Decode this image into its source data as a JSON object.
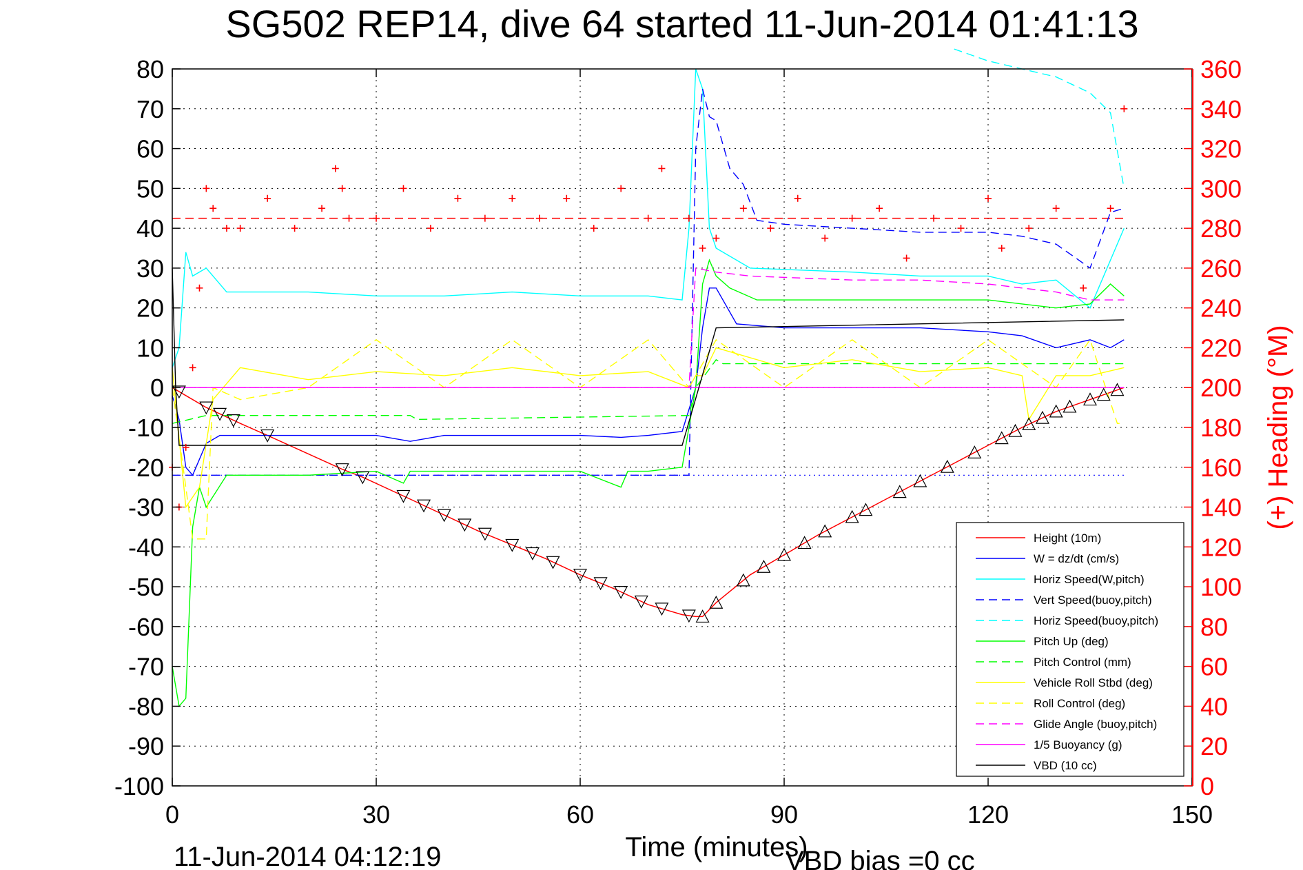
{
  "chart_data": {
    "type": "line",
    "title": "SG502 REP14, dive 64 started 11-Jun-2014 01:41:13",
    "xlabel": "Time (minutes)",
    "ylabel": "",
    "y2label": "(+) Heading (°M)",
    "footer_left": "11-Jun-2014 04:12:19",
    "footer_right": "VBD bias =0 cc",
    "xlim": [
      0,
      150
    ],
    "ylim": [
      -100,
      80
    ],
    "y2lim": [
      0,
      360
    ],
    "xticks": [
      "0",
      "30",
      "60",
      "90",
      "120",
      "150"
    ],
    "yticks": [
      "80",
      "70",
      "60",
      "50",
      "40",
      "30",
      "20",
      "10",
      "0",
      "-10",
      "-20",
      "-30",
      "-40",
      "-50",
      "-60",
      "-70",
      "-80",
      "-90",
      "-100"
    ],
    "y2ticks": [
      "360",
      "340",
      "320",
      "300",
      "280",
      "260",
      "240",
      "220",
      "200",
      "180",
      "160",
      "140",
      "120",
      "100",
      "80",
      "60",
      "40",
      "20",
      "0"
    ],
    "grid": true,
    "legend_position": "bottom-right",
    "series": [
      {
        "name": "Height (10m)",
        "color": "#ff0000",
        "style": "solid",
        "x": [
          0,
          2,
          5,
          10,
          14,
          25,
          28,
          35,
          40,
          45,
          50,
          55,
          60,
          65,
          70,
          75,
          77,
          78,
          80,
          85,
          90,
          95,
          100,
          105,
          110,
          115,
          120,
          125,
          130,
          135,
          140
        ],
        "y": [
          0,
          -2,
          -5,
          -9,
          -12,
          -20.5,
          -22.5,
          -28,
          -32,
          -36,
          -39.5,
          -43,
          -47,
          -50.5,
          -54.5,
          -57,
          -57.5,
          -57.5,
          -54,
          -47,
          -42,
          -37,
          -32.5,
          -28,
          -23.5,
          -19,
          -14.5,
          -10,
          -6,
          -3,
          0
        ]
      },
      {
        "name": "W = dz/dt (cm/s)",
        "color": "#0000ff",
        "style": "solid",
        "x": [
          0,
          1,
          2,
          3,
          5,
          7,
          10,
          20,
          30,
          35,
          40,
          50,
          60,
          66,
          70,
          75,
          77,
          78,
          79,
          80,
          83,
          90,
          100,
          110,
          120,
          125,
          130,
          135,
          138,
          140
        ],
        "y": [
          -2,
          -8,
          -20,
          -22,
          -14,
          -12,
          -12,
          -12,
          -12,
          -13.5,
          -12,
          -12,
          -12,
          -12.5,
          -12,
          -11,
          0,
          15,
          25,
          25,
          16,
          15,
          15,
          15,
          14,
          13,
          10,
          12,
          10,
          12
        ]
      },
      {
        "name": "Horiz Speed(W,pitch)",
        "color": "#00ffff",
        "style": "solid",
        "x": [
          0,
          1,
          2,
          3,
          5,
          8,
          20,
          30,
          40,
          50,
          60,
          70,
          75,
          76,
          77,
          78,
          79,
          80,
          85,
          100,
          110,
          120,
          125,
          130,
          135,
          140
        ],
        "y": [
          5,
          10,
          34,
          28,
          30,
          24,
          24,
          23,
          23,
          24,
          23,
          23,
          22,
          40,
          80,
          75,
          40,
          35,
          30,
          29,
          28,
          28,
          26,
          27,
          20,
          40
        ]
      },
      {
        "name": "Vert Speed(buoy,pitch)",
        "color": "#0000ff",
        "style": "dashed",
        "x": [
          0,
          76,
          77,
          78,
          79,
          80,
          82,
          84,
          86,
          90,
          100,
          110,
          120,
          125,
          130,
          135,
          138,
          140
        ],
        "y": [
          -22,
          -22,
          60,
          75,
          68,
          67,
          55,
          51,
          42,
          41,
          40,
          39,
          39,
          38,
          36,
          30,
          44,
          45
        ]
      },
      {
        "name": "Horiz Speed(buoy,pitch)",
        "color": "#00ffff",
        "style": "dashed",
        "x": [
          115,
          120,
          125,
          130,
          135,
          138,
          140
        ],
        "y": [
          85,
          82,
          80,
          78,
          74,
          69,
          50
        ]
      },
      {
        "name": "Pitch Up (deg)",
        "color": "#00ff00",
        "style": "solid",
        "x": [
          0,
          1,
          2,
          3,
          4,
          5,
          8,
          20,
          30,
          34,
          35,
          40,
          60,
          66,
          67,
          70,
          75,
          77,
          78,
          79,
          80,
          82,
          86,
          100,
          120,
          125,
          130,
          135,
          138,
          140
        ],
        "y": [
          -70,
          -80,
          -78,
          -35,
          -25,
          -30,
          -22,
          -22,
          -21,
          -24,
          -21,
          -21,
          -21,
          -25,
          -21,
          -21,
          -20,
          0,
          26,
          32,
          28,
          25,
          22,
          22,
          22,
          21,
          20,
          21,
          26,
          23
        ]
      },
      {
        "name": "Pitch Control (mm)",
        "color": "#00ff00",
        "style": "dashed",
        "x": [
          0,
          5,
          35,
          36,
          76,
          77,
          80,
          81,
          140
        ],
        "y": [
          -9,
          -7,
          -7,
          -8,
          -7,
          0,
          7,
          6,
          6
        ]
      },
      {
        "name": "Vehicle Roll Stbd (deg)",
        "color": "#ffff00",
        "style": "solid",
        "x": [
          0,
          2,
          4,
          6,
          10,
          20,
          30,
          40,
          50,
          60,
          70,
          76,
          77,
          78,
          80,
          90,
          100,
          110,
          120,
          125,
          126,
          130,
          135,
          140
        ],
        "y": [
          5,
          -30,
          -25,
          -3,
          5,
          2,
          4,
          3,
          5,
          3,
          4,
          0,
          3,
          3,
          10,
          5,
          7,
          4,
          5,
          3,
          -8,
          3,
          3,
          5
        ]
      },
      {
        "name": "Roll Control (deg)",
        "color": "#ffff00",
        "style": "dashed",
        "x": [
          0,
          2,
          3,
          5,
          6,
          10,
          20,
          30,
          40,
          50,
          60,
          70,
          76,
          80,
          90,
          100,
          110,
          120,
          130,
          135,
          139,
          140
        ],
        "y": [
          0,
          -25,
          -38,
          -38,
          0,
          -3,
          0,
          12,
          0,
          12,
          0,
          12,
          0,
          12,
          0,
          12,
          0,
          12,
          0,
          12,
          -9,
          -9
        ]
      },
      {
        "name": "Glide Angle (buoy,pitch)",
        "color": "#ff00ff",
        "style": "dashed",
        "x": [
          0,
          76,
          77,
          80,
          85,
          100,
          110,
          120,
          125,
          130,
          135,
          140
        ],
        "y": [
          0,
          0,
          30,
          29,
          28,
          27,
          27,
          26,
          25,
          24,
          22,
          22
        ]
      },
      {
        "name": "1/5 Buoyancy (g)",
        "color": "#ff00ff",
        "style": "solid",
        "x": [
          0,
          140
        ],
        "y": [
          0,
          0
        ]
      },
      {
        "name": "VBD (10 cc)",
        "color": "#000000",
        "style": "solid",
        "x": [
          0,
          0.5,
          1,
          75,
          80,
          140
        ],
        "y": [
          30,
          0,
          -14.5,
          -14.5,
          15,
          17
        ]
      }
    ],
    "heading_series": {
      "name": "(+) Heading",
      "color": "#ff0000",
      "marker": "+",
      "x": [
        0,
        1,
        2,
        3,
        4,
        5,
        6,
        8,
        10,
        14,
        18,
        22,
        24,
        25,
        26,
        30,
        34,
        38,
        42,
        46,
        50,
        54,
        58,
        62,
        66,
        70,
        72,
        76,
        78,
        80,
        84,
        88,
        92,
        96,
        100,
        104,
        108,
        112,
        116,
        120,
        122,
        126,
        130,
        134,
        138,
        140
      ],
      "y": [
        160,
        140,
        170,
        210,
        250,
        300,
        290,
        280,
        280,
        295,
        280,
        290,
        310,
        300,
        285,
        285,
        300,
        280,
        295,
        285,
        295,
        285,
        295,
        280,
        300,
        285,
        310,
        285,
        270,
        275,
        290,
        280,
        295,
        275,
        285,
        290,
        265,
        285,
        280,
        295,
        270,
        280,
        290,
        250,
        290,
        340
      ]
    },
    "heading_reference": {
      "color": "#ff0000",
      "style": "dashed",
      "value": 285
    },
    "blue_reference": {
      "color": "#0000ff",
      "style": "dotted",
      "x": [
        0,
        140
      ],
      "y": [
        -22,
        -22
      ]
    },
    "depth_markers_down_x": [
      1,
      5,
      7,
      9,
      14,
      25,
      28,
      34,
      37,
      40,
      43,
      46,
      50,
      53,
      56,
      60,
      63,
      66,
      69,
      72,
      76
    ],
    "depth_markers_up_x": [
      78,
      80,
      84,
      87,
      90,
      93,
      96,
      100,
      102,
      107,
      110,
      114,
      118,
      122,
      124,
      126,
      128,
      130,
      132,
      135,
      137,
      139
    ]
  }
}
